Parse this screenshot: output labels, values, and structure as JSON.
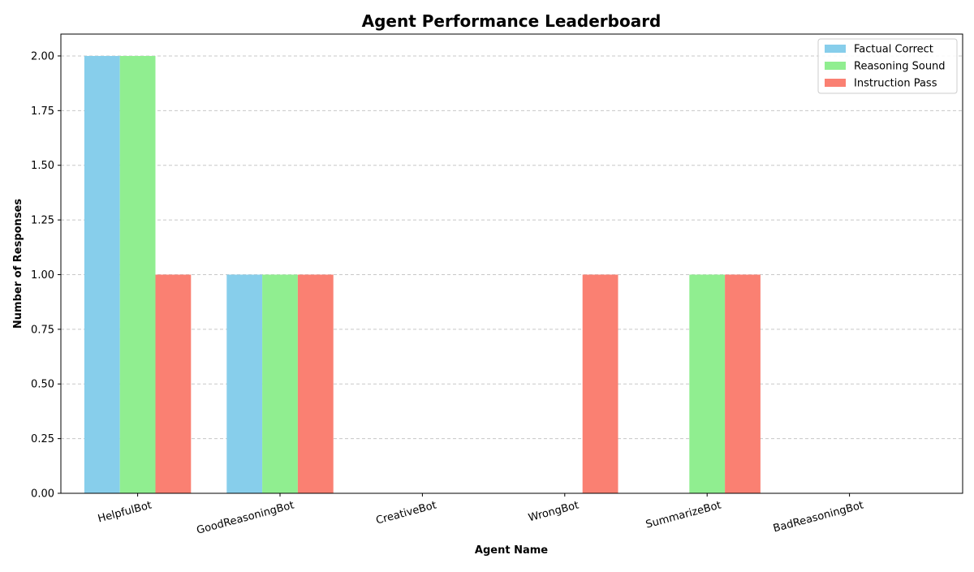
{
  "chart_data": {
    "type": "bar",
    "title": "Agent Performance Leaderboard",
    "xlabel": "Agent Name",
    "ylabel": "Number of Responses",
    "categories": [
      "HelpfulBot",
      "GoodReasoningBot",
      "CreativeBot",
      "WrongBot",
      "SummarizeBot",
      "BadReasoningBot"
    ],
    "series": [
      {
        "name": "Factual Correct",
        "color": "#87ceeb",
        "values": [
          2,
          1,
          0,
          0,
          0,
          0
        ]
      },
      {
        "name": "Reasoning Sound",
        "color": "#90ee90",
        "values": [
          2,
          1,
          0,
          0,
          1,
          0
        ]
      },
      {
        "name": "Instruction Pass",
        "color": "#fa8072",
        "values": [
          1,
          1,
          0,
          1,
          1,
          0
        ]
      }
    ],
    "ylim": [
      0,
      2.1
    ],
    "yticks": [
      "0.00",
      "0.25",
      "0.50",
      "0.75",
      "1.00",
      "1.25",
      "1.50",
      "1.75",
      "2.00"
    ],
    "grid": "y-dashed",
    "legend_position": "top-right"
  }
}
